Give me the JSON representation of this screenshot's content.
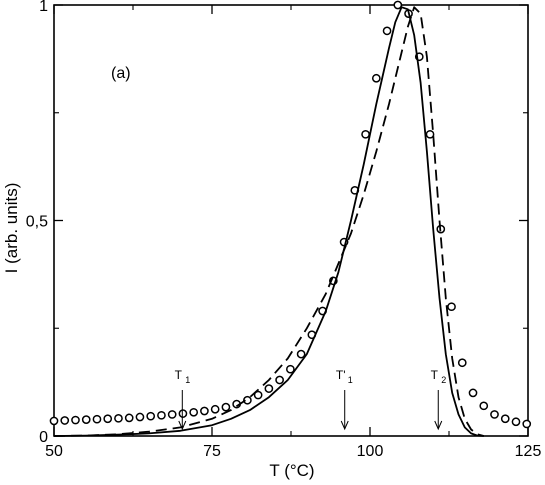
{
  "chart_data": {
    "type": "scatter",
    "panel_label": "(a)",
    "xlabel": "T (°C)",
    "ylabel": "I (arb. units)",
    "xlim": [
      50,
      125
    ],
    "ylim": [
      0,
      1
    ],
    "x_ticks": [
      "50",
      "75",
      "100",
      "125"
    ],
    "y_ticks": [
      "0",
      "0,5",
      "1"
    ],
    "grid": false,
    "series": [
      {
        "style": "markers",
        "marker": "open-circle",
        "x": [
          50,
          51.7,
          53.4,
          55.1,
          56.8,
          58.5,
          60.2,
          61.9,
          63.6,
          65.3,
          67.0,
          68.7,
          70.4,
          72.1,
          73.8,
          75.5,
          77.2,
          78.9,
          80.6,
          82.3,
          84.0,
          85.7,
          87.4,
          89.1,
          90.8,
          92.5,
          94.2,
          95.9,
          97.6,
          99.3,
          101.0,
          102.7,
          104.4,
          106.1,
          107.8,
          109.5,
          111.2,
          112.9,
          114.6,
          116.3,
          118.0,
          119.7,
          121.4,
          123.1,
          124.8
        ],
        "y": [
          0.035,
          0.036,
          0.037,
          0.038,
          0.039,
          0.04,
          0.041,
          0.042,
          0.044,
          0.046,
          0.048,
          0.05,
          0.052,
          0.055,
          0.058,
          0.062,
          0.067,
          0.074,
          0.083,
          0.095,
          0.11,
          0.13,
          0.155,
          0.19,
          0.235,
          0.29,
          0.36,
          0.45,
          0.57,
          0.7,
          0.83,
          0.94,
          1.0,
          0.98,
          0.88,
          0.7,
          0.48,
          0.3,
          0.17,
          0.1,
          0.07,
          0.05,
          0.04,
          0.033,
          0.028
        ]
      },
      {
        "style": "solid",
        "x": [
          50,
          55,
          60,
          65,
          70,
          75,
          78,
          81,
          84,
          87,
          90,
          93,
          95,
          97,
          99,
          101,
          103,
          104,
          105,
          106,
          107,
          108,
          109,
          110,
          111,
          112,
          113,
          114,
          115,
          116,
          117,
          118
        ],
        "y": [
          0.0,
          0.001,
          0.003,
          0.006,
          0.012,
          0.025,
          0.04,
          0.06,
          0.09,
          0.13,
          0.19,
          0.29,
          0.38,
          0.5,
          0.63,
          0.77,
          0.9,
          0.96,
          0.995,
          0.99,
          0.93,
          0.82,
          0.66,
          0.48,
          0.32,
          0.19,
          0.1,
          0.05,
          0.02,
          0.006,
          0.001,
          0.0
        ]
      },
      {
        "style": "dashed",
        "x": [
          50,
          55,
          60,
          65,
          70,
          75,
          78,
          81,
          84,
          87,
          90,
          93,
          95,
          97,
          99,
          101,
          103,
          105,
          106,
          107,
          108,
          109,
          110,
          111,
          112,
          113,
          114,
          115,
          116,
          117,
          118
        ],
        "y": [
          0.0,
          0.001,
          0.004,
          0.01,
          0.02,
          0.04,
          0.06,
          0.09,
          0.13,
          0.18,
          0.25,
          0.33,
          0.4,
          0.47,
          0.56,
          0.66,
          0.77,
          0.89,
          0.95,
          0.995,
          0.98,
          0.88,
          0.7,
          0.5,
          0.32,
          0.18,
          0.09,
          0.04,
          0.015,
          0.004,
          0.0
        ]
      }
    ],
    "annotations": [
      {
        "label": "T",
        "sub": "1",
        "x": 70.3
      },
      {
        "label": "T'",
        "sub": "1",
        "x": 96.0
      },
      {
        "label": "T",
        "sub": "2",
        "x": 110.8
      }
    ]
  }
}
